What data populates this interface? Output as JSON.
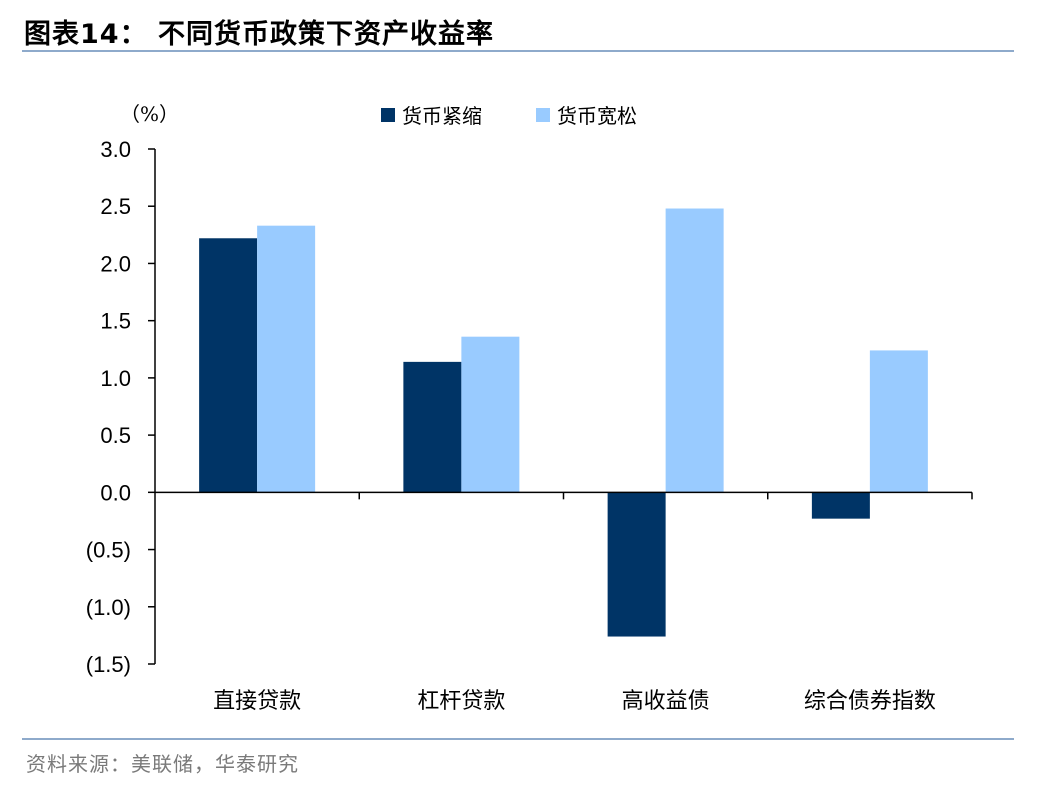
{
  "figure_title": "图表14：  不同货币政策下资产收益率",
  "source": "资料来源：美联储，华泰研究",
  "colors": {
    "tightening": "#003466",
    "easing": "#99cbff",
    "rule": "#8eaacb"
  },
  "chart_data": {
    "type": "bar",
    "unit_label": "（%）",
    "categories": [
      "直接贷款",
      "杠杆贷款",
      "高收益债",
      "综合债券指数"
    ],
    "series": [
      {
        "name": "货币紧缩",
        "values": [
          2.22,
          1.14,
          -1.26,
          -0.23
        ]
      },
      {
        "name": "货币宽松",
        "values": [
          2.33,
          1.36,
          2.48,
          1.24
        ]
      }
    ],
    "ylim": [
      -1.5,
      3.0
    ],
    "yticks": [
      3.0,
      2.5,
      2.0,
      1.5,
      1.0,
      0.5,
      0.0,
      -0.5,
      -1.0,
      -1.5
    ],
    "ytick_labels": [
      "3.0",
      "2.5",
      "2.0",
      "1.5",
      "1.0",
      "0.5",
      "0.0",
      "(0.5)",
      "(1.0)",
      "(1.5)"
    ],
    "legend_position": "top-center",
    "grid": false
  }
}
